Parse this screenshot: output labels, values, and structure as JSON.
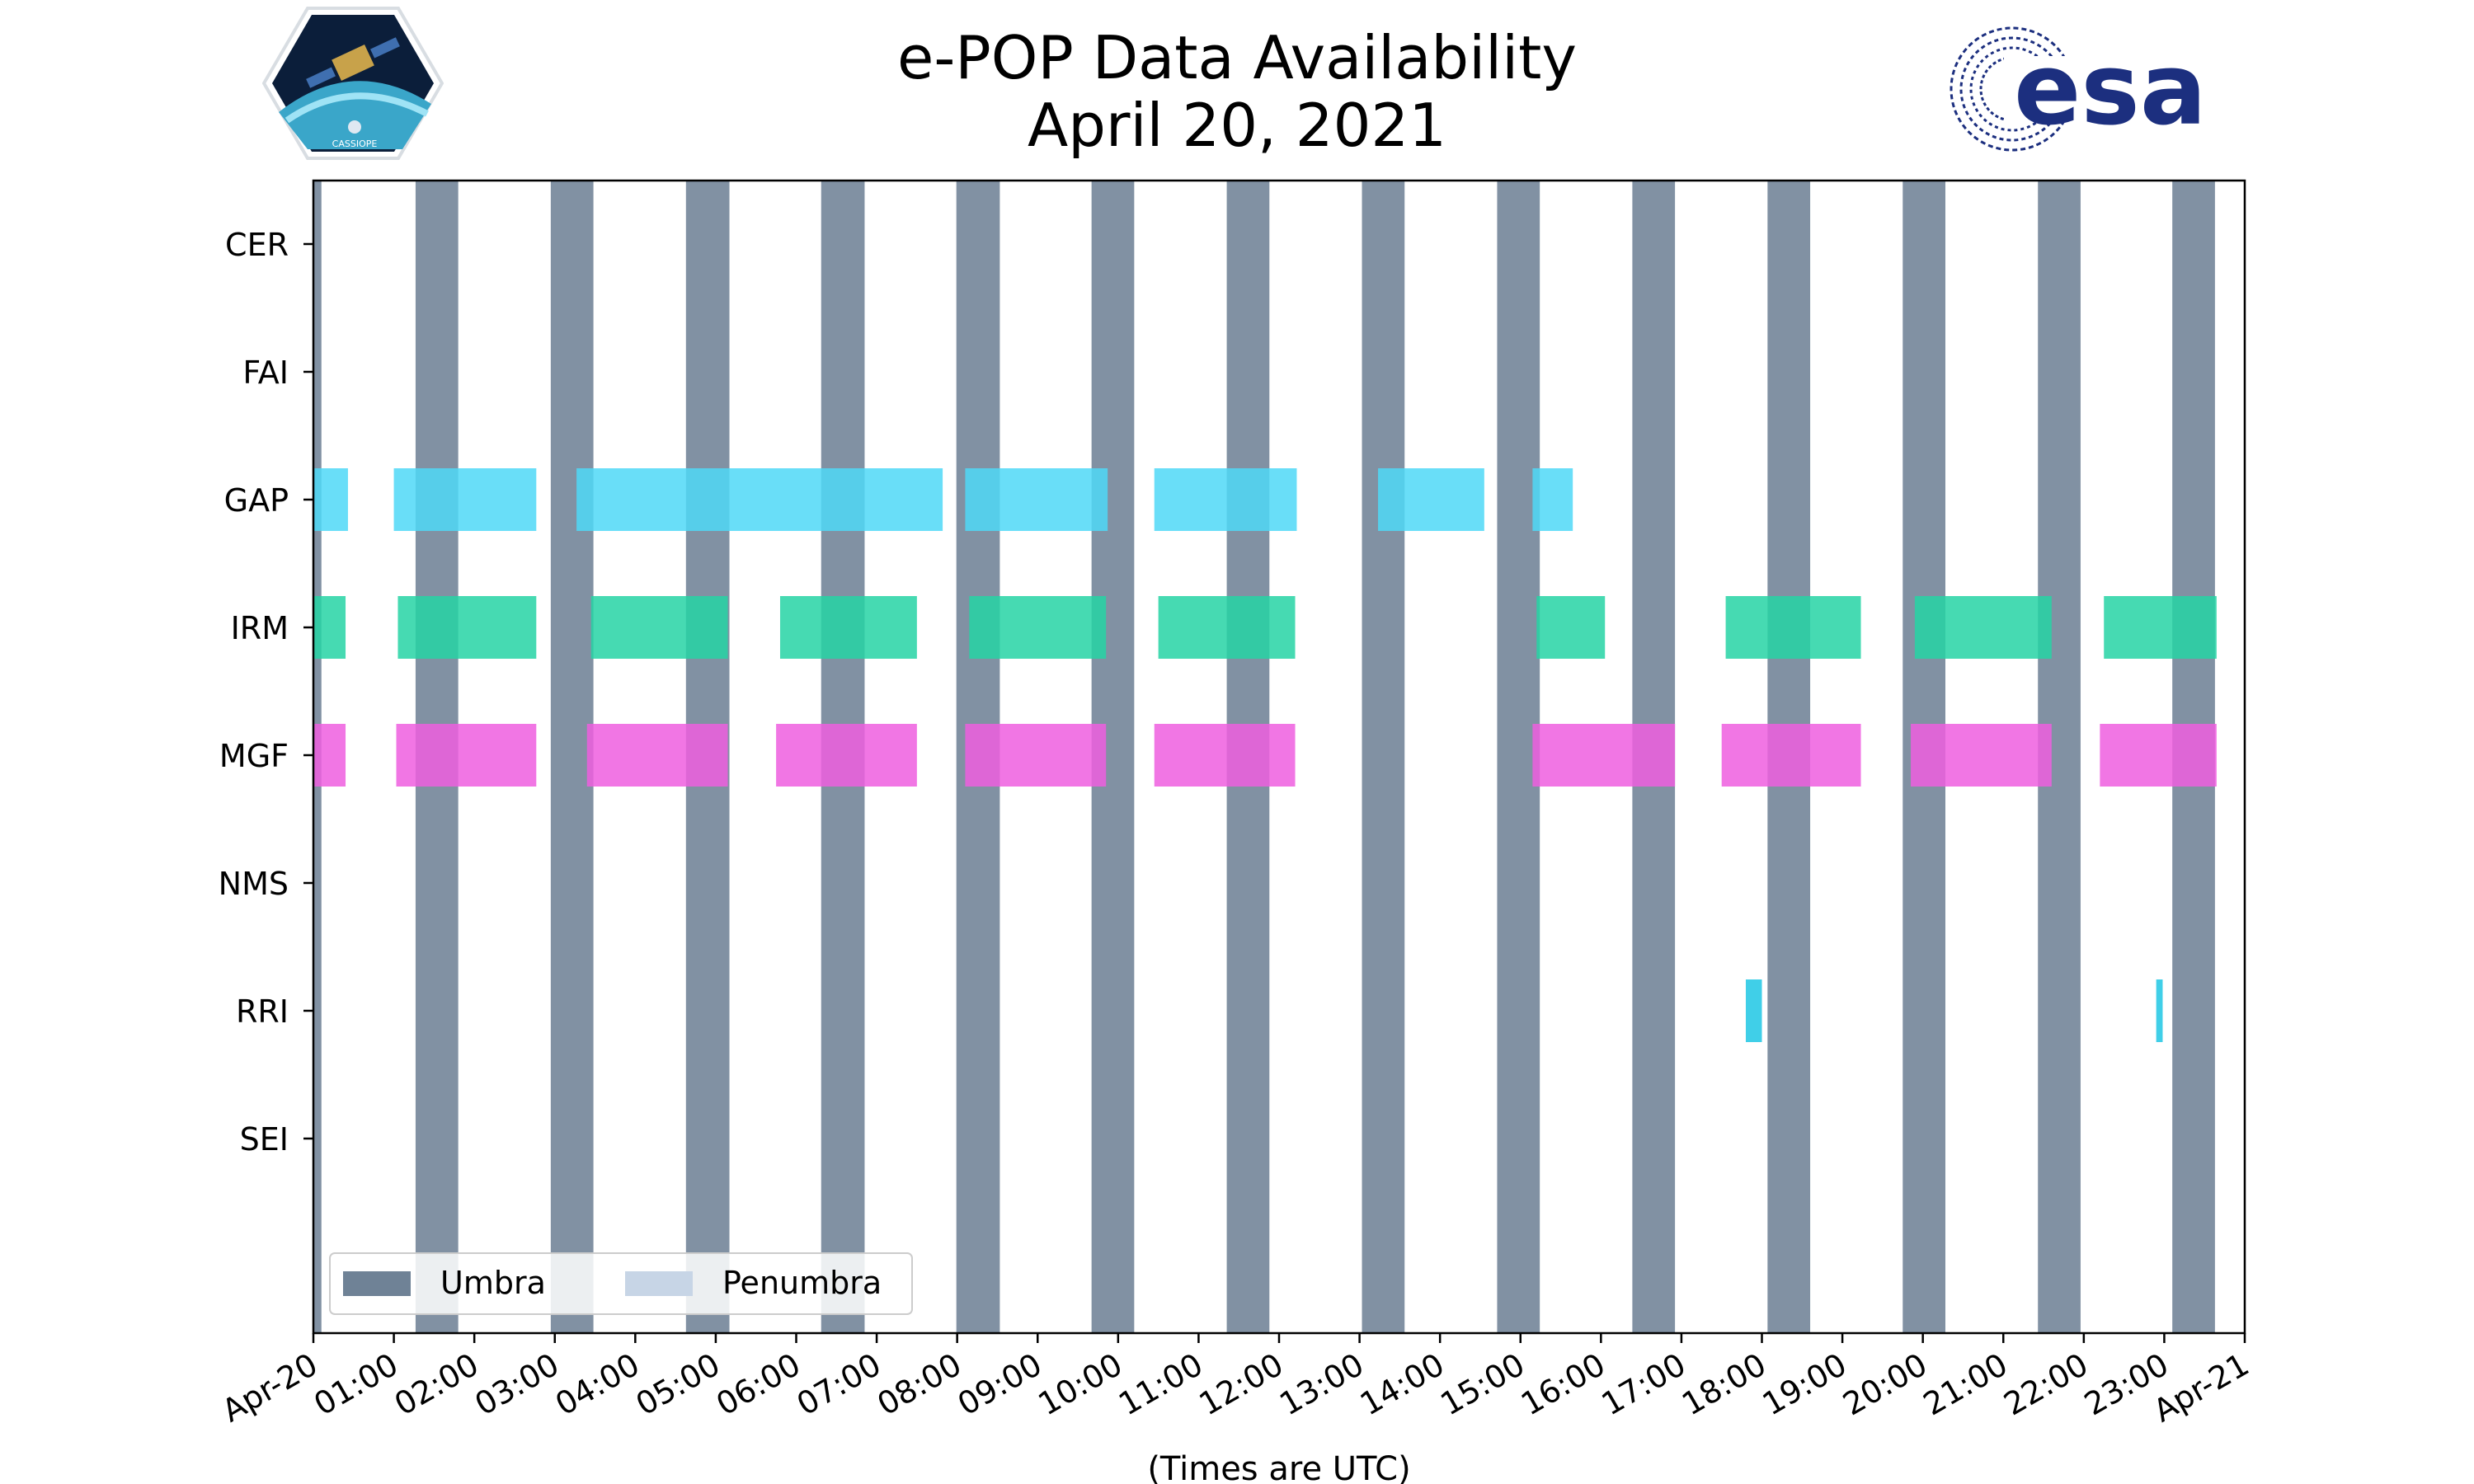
{
  "title_line1": "e-POP Data Availability",
  "title_line2": "April 20, 2021",
  "logo_left": {
    "label": "CASSIOPE"
  },
  "logo_right": {
    "label": "esa",
    "color": "#1c2f7f"
  },
  "chart_data": {
    "type": "timeline",
    "title": "e-POP Data Availability April 20, 2021",
    "xlabel": "(Times are UTC)",
    "x_unit": "hours",
    "xlim": [
      0,
      24
    ],
    "x_ticks": [
      {
        "h": 0,
        "label": "Apr-20"
      },
      {
        "h": 1,
        "label": "01:00"
      },
      {
        "h": 2,
        "label": "02:00"
      },
      {
        "h": 3,
        "label": "03:00"
      },
      {
        "h": 4,
        "label": "04:00"
      },
      {
        "h": 5,
        "label": "05:00"
      },
      {
        "h": 6,
        "label": "06:00"
      },
      {
        "h": 7,
        "label": "07:00"
      },
      {
        "h": 8,
        "label": "08:00"
      },
      {
        "h": 9,
        "label": "09:00"
      },
      {
        "h": 10,
        "label": "10:00"
      },
      {
        "h": 11,
        "label": "11:00"
      },
      {
        "h": 12,
        "label": "12:00"
      },
      {
        "h": 13,
        "label": "13:00"
      },
      {
        "h": 14,
        "label": "14:00"
      },
      {
        "h": 15,
        "label": "15:00"
      },
      {
        "h": 16,
        "label": "16:00"
      },
      {
        "h": 17,
        "label": "17:00"
      },
      {
        "h": 18,
        "label": "18:00"
      },
      {
        "h": 19,
        "label": "19:00"
      },
      {
        "h": 20,
        "label": "20:00"
      },
      {
        "h": 21,
        "label": "21:00"
      },
      {
        "h": 22,
        "label": "22:00"
      },
      {
        "h": 23,
        "label": "23:00"
      },
      {
        "h": 24,
        "label": "Apr-21"
      }
    ],
    "instruments": [
      "CER",
      "FAI",
      "GAP",
      "IRM",
      "MGF",
      "NMS",
      "RRI",
      "SEI"
    ],
    "umbra_color": "#6f8296",
    "penumbra_color": "#c7d5e6",
    "umbra": [
      [
        0.0,
        0.1
      ],
      [
        1.27,
        1.8
      ],
      [
        2.95,
        3.48
      ],
      [
        4.63,
        5.17
      ],
      [
        6.31,
        6.85
      ],
      [
        7.99,
        8.53
      ],
      [
        9.67,
        10.2
      ],
      [
        11.35,
        11.88
      ],
      [
        13.03,
        13.56
      ],
      [
        14.71,
        15.24
      ],
      [
        16.39,
        16.92
      ],
      [
        18.07,
        18.6
      ],
      [
        19.75,
        20.28
      ],
      [
        21.43,
        21.96
      ],
      [
        23.1,
        23.63
      ]
    ],
    "series": [
      {
        "name": "GAP",
        "color": "#4fd8f7",
        "intervals": [
          [
            0.0,
            0.43
          ],
          [
            1.0,
            2.77
          ],
          [
            3.27,
            7.82
          ],
          [
            8.1,
            9.87
          ],
          [
            10.45,
            12.22
          ],
          [
            13.23,
            14.55
          ],
          [
            15.15,
            15.65
          ]
        ]
      },
      {
        "name": "IRM",
        "color": "#26d4a4",
        "intervals": [
          [
            0.0,
            0.4
          ],
          [
            1.05,
            2.77
          ],
          [
            3.45,
            5.15
          ],
          [
            5.8,
            7.5
          ],
          [
            8.15,
            9.85
          ],
          [
            10.5,
            12.2
          ],
          [
            15.2,
            16.05
          ],
          [
            17.55,
            19.23
          ],
          [
            19.9,
            21.6
          ],
          [
            22.25,
            23.65
          ]
        ]
      },
      {
        "name": "RRI",
        "color": "#1fc7e4",
        "intervals": [
          [
            17.8,
            18.0
          ],
          [
            22.9,
            22.98
          ]
        ]
      },
      {
        "name": "MGF",
        "color": "#ef5edf",
        "intervals": [
          [
            0.0,
            0.4
          ],
          [
            1.03,
            2.77
          ],
          [
            3.4,
            5.15
          ],
          [
            5.75,
            7.5
          ],
          [
            8.1,
            9.85
          ],
          [
            10.45,
            12.2
          ],
          [
            15.15,
            16.92
          ],
          [
            17.5,
            19.23
          ],
          [
            19.85,
            21.6
          ],
          [
            22.2,
            23.65
          ]
        ]
      }
    ],
    "legend": {
      "position": "lower-left",
      "entries": [
        "Umbra",
        "Penumbra"
      ]
    }
  }
}
